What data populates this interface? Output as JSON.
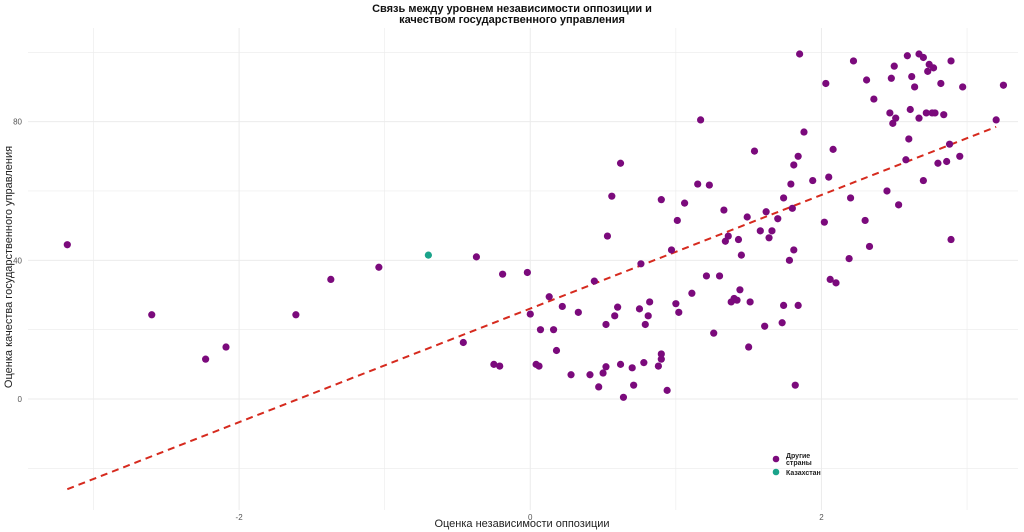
{
  "chart_data": {
    "type": "scatter",
    "title_lines": [
      "Связь между уровнем независимости оппозиции и",
      "качеством государственного управления"
    ],
    "xlabel": "Оценка независимости оппозиции",
    "ylabel": "Оценка качества государственного управления",
    "xlim": [
      -3.45,
      3.35
    ],
    "ylim": [
      -32,
      107
    ],
    "xticks": [
      -2,
      0,
      2
    ],
    "xtick_labels": [
      "-2",
      "0",
      "2"
    ],
    "yticks": [
      0,
      40,
      80
    ],
    "ytick_labels": [
      "0",
      "40",
      "80"
    ],
    "grid": true,
    "legend_position": "bottom-right",
    "colors": {
      "other": "#7b0a7c",
      "kazakhstan": "#1aa38a",
      "trend": "#d62a1e",
      "grid": "#ebebeb"
    },
    "series": [
      {
        "name": "Другие страны",
        "label_lines": [
          "Другие",
          "страны"
        ],
        "color": "#7b0a7c",
        "points": [
          [
            -3.18,
            44.5
          ],
          [
            -2.6,
            24.3
          ],
          [
            -2.23,
            11.5
          ],
          [
            -2.09,
            15.0
          ],
          [
            -1.61,
            24.3
          ],
          [
            -1.37,
            34.5
          ],
          [
            -1.04,
            38.0
          ],
          [
            -0.46,
            16.3
          ],
          [
            -0.37,
            41.0
          ],
          [
            -0.25,
            10.0
          ],
          [
            -0.21,
            9.5
          ],
          [
            -0.19,
            36.0
          ],
          [
            -0.02,
            36.5
          ],
          [
            0.0,
            24.5
          ],
          [
            0.04,
            10.0
          ],
          [
            0.06,
            9.5
          ],
          [
            0.07,
            20.0
          ],
          [
            0.13,
            29.5
          ],
          [
            0.16,
            20.0
          ],
          [
            0.18,
            14.0
          ],
          [
            0.22,
            26.7
          ],
          [
            0.28,
            7.0
          ],
          [
            0.33,
            25.0
          ],
          [
            0.41,
            7.0
          ],
          [
            0.44,
            34.0
          ],
          [
            0.47,
            3.5
          ],
          [
            0.5,
            7.5
          ],
          [
            0.52,
            21.5
          ],
          [
            0.52,
            9.3
          ],
          [
            0.53,
            47.0
          ],
          [
            0.56,
            58.5
          ],
          [
            0.58,
            24.0
          ],
          [
            0.6,
            26.5
          ],
          [
            0.62,
            68.0
          ],
          [
            0.62,
            10.0
          ],
          [
            0.64,
            0.5
          ],
          [
            0.7,
            9.0
          ],
          [
            0.71,
            4.0
          ],
          [
            0.75,
            26.0
          ],
          [
            0.76,
            39.0
          ],
          [
            0.78,
            10.5
          ],
          [
            0.79,
            21.5
          ],
          [
            0.81,
            24.0
          ],
          [
            0.82,
            28.0
          ],
          [
            0.88,
            9.5
          ],
          [
            0.9,
            11.5
          ],
          [
            0.9,
            13.0
          ],
          [
            0.9,
            57.5
          ],
          [
            0.94,
            2.5
          ],
          [
            0.97,
            43.0
          ],
          [
            1.0,
            27.5
          ],
          [
            1.01,
            51.5
          ],
          [
            1.02,
            25.0
          ],
          [
            1.06,
            56.5
          ],
          [
            1.11,
            30.5
          ],
          [
            1.15,
            62.0
          ],
          [
            1.17,
            80.5
          ],
          [
            1.21,
            35.5
          ],
          [
            1.23,
            61.7
          ],
          [
            1.26,
            19.0
          ],
          [
            1.3,
            35.5
          ],
          [
            1.33,
            54.5
          ],
          [
            1.34,
            45.5
          ],
          [
            1.36,
            47.0
          ],
          [
            1.38,
            28.0
          ],
          [
            1.4,
            29.0
          ],
          [
            1.42,
            28.5
          ],
          [
            1.43,
            46.0
          ],
          [
            1.44,
            31.5
          ],
          [
            1.45,
            41.5
          ],
          [
            1.49,
            52.5
          ],
          [
            1.5,
            15.0
          ],
          [
            1.51,
            28.0
          ],
          [
            1.54,
            71.5
          ],
          [
            1.58,
            48.5
          ],
          [
            1.61,
            21.0
          ],
          [
            1.62,
            54.0
          ],
          [
            1.64,
            46.5
          ],
          [
            1.66,
            48.5
          ],
          [
            1.7,
            52.0
          ],
          [
            1.73,
            22.0
          ],
          [
            1.74,
            27.0
          ],
          [
            1.74,
            58.0
          ],
          [
            1.78,
            40.0
          ],
          [
            1.79,
            62.0
          ],
          [
            1.8,
            55.0
          ],
          [
            1.81,
            67.5
          ],
          [
            1.81,
            43.0
          ],
          [
            1.82,
            4.0
          ],
          [
            1.84,
            70.0
          ],
          [
            1.84,
            27.0
          ],
          [
            1.85,
            99.5
          ],
          [
            1.88,
            77.0
          ],
          [
            1.94,
            63.0
          ],
          [
            2.02,
            51.0
          ],
          [
            2.03,
            91.0
          ],
          [
            2.05,
            64.0
          ],
          [
            2.06,
            34.5
          ],
          [
            2.08,
            72.0
          ],
          [
            2.1,
            33.5
          ],
          [
            2.19,
            40.5
          ],
          [
            2.2,
            58.0
          ],
          [
            2.22,
            97.5
          ],
          [
            2.3,
            51.5
          ],
          [
            2.31,
            92.0
          ],
          [
            2.33,
            44.0
          ],
          [
            2.36,
            86.5
          ],
          [
            2.45,
            60.0
          ],
          [
            2.47,
            82.5
          ],
          [
            2.48,
            92.5
          ],
          [
            2.49,
            79.5
          ],
          [
            2.5,
            96.0
          ],
          [
            2.51,
            81.0
          ],
          [
            2.53,
            56.0
          ],
          [
            2.58,
            69.0
          ],
          [
            2.59,
            99.0
          ],
          [
            2.6,
            75.0
          ],
          [
            2.61,
            83.5
          ],
          [
            2.62,
            93.0
          ],
          [
            2.64,
            90.0
          ],
          [
            2.67,
            99.5
          ],
          [
            2.67,
            81.0
          ],
          [
            2.7,
            63.0
          ],
          [
            2.7,
            98.5
          ],
          [
            2.72,
            82.5
          ],
          [
            2.73,
            94.5
          ],
          [
            2.74,
            96.5
          ],
          [
            2.76,
            82.5
          ],
          [
            2.77,
            95.5
          ],
          [
            2.78,
            82.5
          ],
          [
            2.8,
            68.0
          ],
          [
            2.82,
            91.0
          ],
          [
            2.84,
            82.0
          ],
          [
            2.86,
            68.5
          ],
          [
            2.88,
            73.5
          ],
          [
            2.89,
            46.0
          ],
          [
            2.89,
            97.5
          ],
          [
            2.95,
            70.0
          ],
          [
            2.97,
            90.0
          ],
          [
            3.2,
            80.5
          ],
          [
            3.25,
            90.5
          ]
        ]
      },
      {
        "name": "Казахстан",
        "label_lines": [
          "Казахстан"
        ],
        "color": "#1aa38a",
        "points": [
          [
            -0.7,
            41.5
          ]
        ]
      }
    ],
    "trend_line": {
      "style": "dashed",
      "color": "#d62a1e",
      "points": [
        [
          -3.18,
          -26.0
        ],
        [
          3.2,
          78.5
        ]
      ]
    }
  }
}
